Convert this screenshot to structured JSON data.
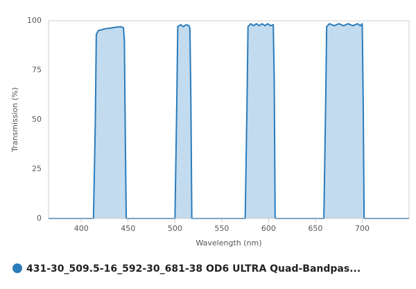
{
  "chart_data": {
    "type": "area",
    "x_label": "Wavelength (nm)",
    "y_label": "Transmission (%)",
    "x": [
      365,
      413,
      415,
      416,
      418,
      422,
      426,
      430,
      434,
      438,
      442,
      445,
      446,
      447,
      448,
      500,
      502,
      503,
      506,
      509,
      512,
      515,
      516,
      517,
      518,
      575,
      577,
      578,
      581,
      584,
      587,
      590,
      593,
      596,
      599,
      602,
      605,
      606,
      607,
      659,
      661,
      662,
      665,
      670,
      675,
      680,
      685,
      690,
      695,
      698,
      700,
      701,
      702,
      750
    ],
    "series": [
      {
        "name": "431-30_509.5-16_592-30_681-38 OD6 ULTRA Quad-Bandpas...",
        "color": "#2b7bba",
        "fill": "#c2dbee",
        "values": [
          0,
          0,
          50,
          93,
          95,
          95.5,
          96,
          96.2,
          96.5,
          96.8,
          97,
          96.5,
          90,
          40,
          0,
          0,
          60,
          97,
          98,
          97,
          98,
          97.5,
          96,
          60,
          0,
          0,
          60,
          97,
          98.5,
          97.5,
          98.5,
          97.5,
          98.5,
          97.5,
          98.5,
          97.5,
          98,
          70,
          0,
          0,
          60,
          97,
          98.5,
          97.5,
          98.5,
          97.5,
          98.5,
          97.5,
          98.5,
          97.5,
          98.5,
          60,
          0,
          0
        ]
      }
    ],
    "xlim": [
      365,
      750
    ],
    "ylim": [
      0,
      100
    ],
    "xticks": [
      400,
      450,
      500,
      550,
      600,
      650,
      700
    ],
    "yticks": [
      0,
      25,
      50,
      75,
      100
    ],
    "grid": false
  }
}
